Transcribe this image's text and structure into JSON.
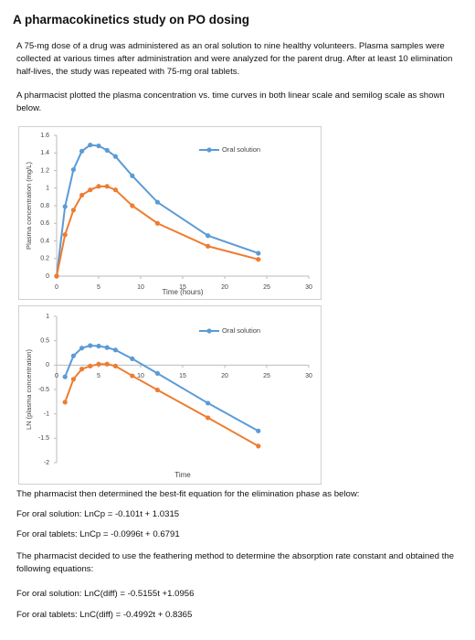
{
  "document": {
    "title": "A pharmacokinetics study on PO dosing",
    "intro": [
      "A 75-mg dose of a drug was administered as an oral solution to nine healthy volunteers. Plasma samples were collected at various times after administration and were analyzed for the parent drug. After at least 10 elimination half-lives, the study was repeated with 75-mg oral tablets.",
      "A pharmacist plotted the plasma concentration vs. time curves in both linear scale and semilog scale as shown below."
    ],
    "conclusion": [
      "The pharmacist then determined the best-fit equation for the elimination phase as below:",
      "For oral solution: LnCp = -0.101t + 1.0315",
      "For oral tablets: LnCp = -0.0996t + 0.6791",
      "The pharmacist decided to use the feathering method to determine the absorption rate constant and obtained the following equations:",
      "For oral solution: LnC(diff) = -0.5155t +1.0956",
      "For oral tablets: LnC(diff) = -0.4992t + 0.8365"
    ]
  },
  "chart_data": [
    {
      "type": "line",
      "x_label": "Time (hours)",
      "y_label": "Plasma concentration (mg/L)",
      "xlim": [
        0,
        30
      ],
      "xticks": [
        0,
        5,
        10,
        15,
        20,
        25,
        30
      ],
      "ylim": [
        0,
        1.6
      ],
      "yticks": [
        0,
        0.2,
        0.4,
        0.6,
        0.8,
        1,
        1.2,
        1.4,
        1.6
      ],
      "grid": false,
      "legend": "top-right",
      "series": [
        {
          "name": "Oral solution",
          "color": "#5b9bd5",
          "x": [
            0,
            1,
            2,
            3,
            4,
            5,
            6,
            7,
            9,
            12,
            18,
            24
          ],
          "values": [
            0,
            0.79,
            1.21,
            1.42,
            1.49,
            1.48,
            1.43,
            1.36,
            1.14,
            0.84,
            0.46,
            0.26
          ]
        },
        {
          "color": "#ed7d31",
          "x": [
            0,
            1,
            2,
            3,
            4,
            5,
            6,
            7,
            9,
            12,
            18,
            24
          ],
          "values": [
            0,
            0.47,
            0.75,
            0.92,
            0.98,
            1.02,
            1.02,
            0.98,
            0.8,
            0.6,
            0.34,
            0.19
          ]
        }
      ]
    },
    {
      "type": "line",
      "x_label": "Time",
      "y_label": "LN (plasma concentration)",
      "xlim": [
        0,
        30
      ],
      "xticks": [
        0,
        5,
        10,
        15,
        20,
        25,
        30
      ],
      "ylim": [
        -2,
        1
      ],
      "yticks": [
        1,
        0.5,
        0,
        -0.5,
        -1,
        -1.5,
        -2
      ],
      "grid": false,
      "legend": "top-right",
      "series": [
        {
          "name": "Oral solution",
          "color": "#5b9bd5",
          "x": [
            1,
            2,
            3,
            4,
            5,
            6,
            7,
            9,
            12,
            18,
            24
          ],
          "values": [
            -0.24,
            0.19,
            0.35,
            0.4,
            0.39,
            0.36,
            0.31,
            0.13,
            -0.17,
            -0.78,
            -1.35
          ]
        },
        {
          "color": "#ed7d31",
          "x": [
            1,
            2,
            3,
            4,
            5,
            6,
            7,
            9,
            12,
            18,
            24
          ],
          "values": [
            -0.76,
            -0.29,
            -0.08,
            -0.02,
            0.02,
            0.02,
            -0.02,
            -0.22,
            -0.51,
            -1.08,
            -1.66
          ]
        }
      ]
    }
  ]
}
